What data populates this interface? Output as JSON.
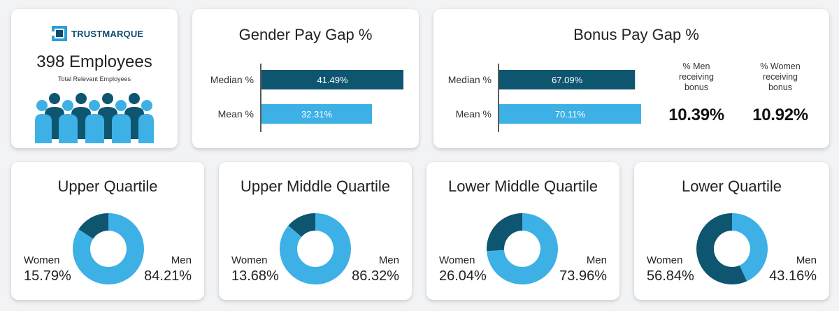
{
  "colors": {
    "dark": "#0e5570",
    "light": "#3db0e6"
  },
  "employees": {
    "brand": "TRUSTMARQUE",
    "count_label": "398 Employees",
    "sub_label": "Total Relevant Employees",
    "icon": "people-group-icon"
  },
  "bonus_stats": {
    "men_label": [
      "% Men",
      "receiving",
      "bonus"
    ],
    "men_value": "10.39%",
    "women_label": [
      "% Women",
      "receiving",
      "bonus"
    ],
    "women_value": "10.92%"
  },
  "chart_data": [
    {
      "type": "bar",
      "orientation": "horizontal",
      "title": "Gender Pay Gap %",
      "categories": [
        "Median %",
        "Mean %"
      ],
      "values": [
        41.49,
        32.31
      ],
      "value_labels": [
        "41.49%",
        "32.31%"
      ],
      "xlim": [
        0,
        41.49
      ]
    },
    {
      "type": "bar",
      "orientation": "horizontal",
      "title": "Bonus Pay Gap %",
      "categories": [
        "Median %",
        "Mean %"
      ],
      "values": [
        67.09,
        70.11
      ],
      "value_labels": [
        "67.09%",
        "70.11%"
      ],
      "xlim": [
        0,
        70.11
      ]
    },
    {
      "type": "pie",
      "title": "Upper Quartile",
      "categories": [
        "Women",
        "Men"
      ],
      "values": [
        15.79,
        84.21
      ],
      "value_labels": [
        "15.79%",
        "84.21%"
      ]
    },
    {
      "type": "pie",
      "title": "Upper Middle Quartile",
      "categories": [
        "Women",
        "Men"
      ],
      "values": [
        13.68,
        86.32
      ],
      "value_labels": [
        "13.68%",
        "86.32%"
      ]
    },
    {
      "type": "pie",
      "title": "Lower Middle Quartile",
      "categories": [
        "Women",
        "Men"
      ],
      "values": [
        26.04,
        73.96
      ],
      "value_labels": [
        "26.04%",
        "73.96%"
      ]
    },
    {
      "type": "pie",
      "title": "Lower Quartile",
      "categories": [
        "Women",
        "Men"
      ],
      "values": [
        56.84,
        43.16
      ],
      "value_labels": [
        "56.84%",
        "43.16%"
      ]
    }
  ]
}
